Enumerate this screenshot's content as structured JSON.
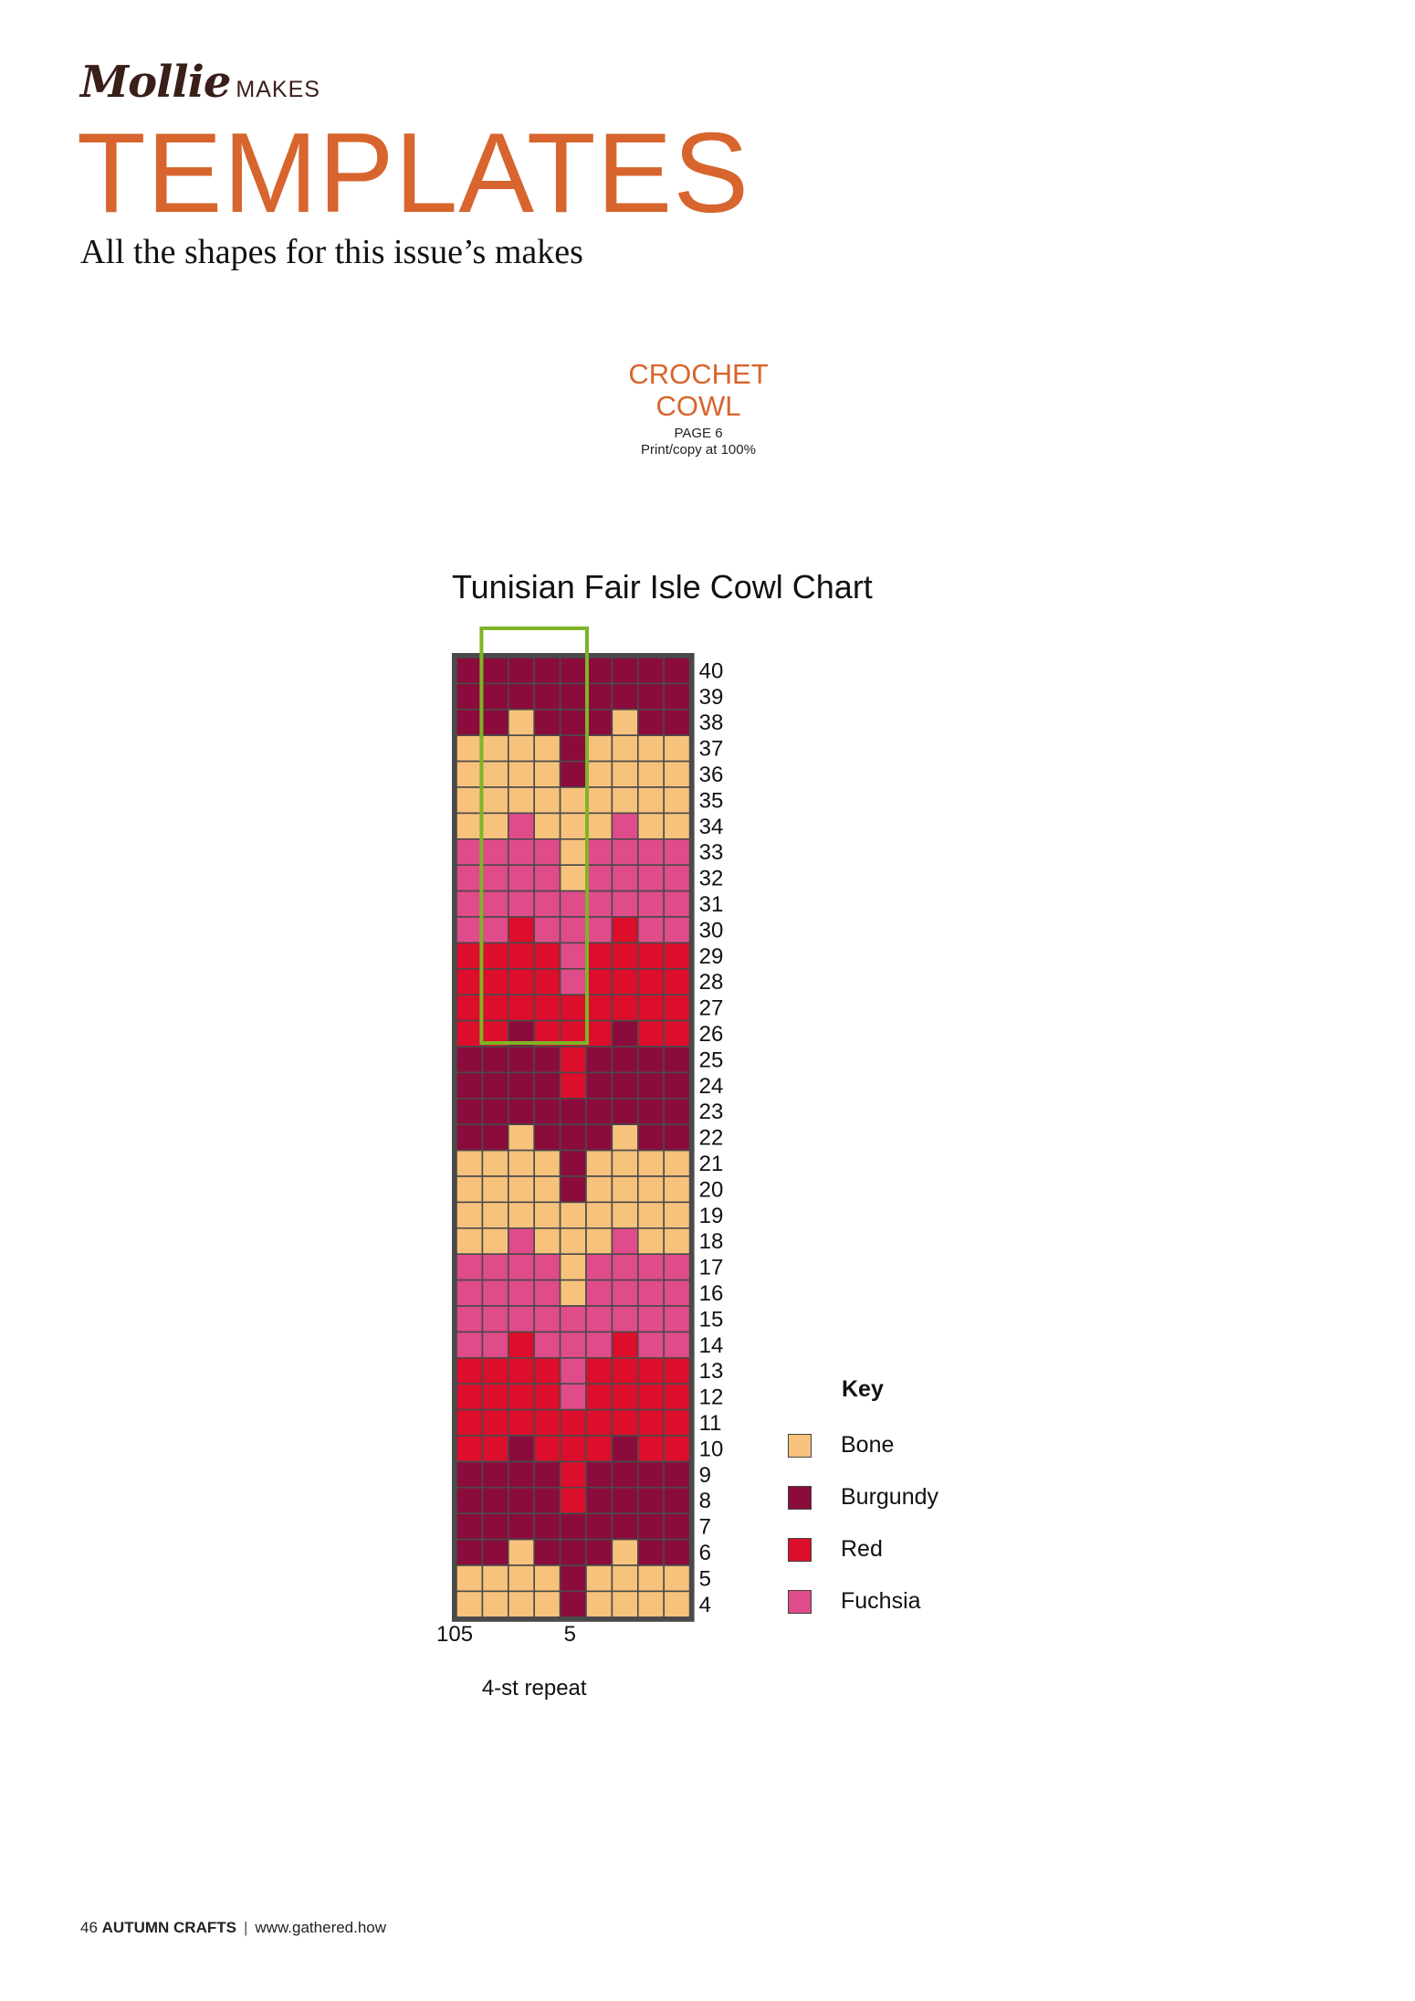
{
  "brand": {
    "script": "Mollie",
    "makes": "MAKES"
  },
  "header": {
    "title": "TEMPLATES",
    "subtitle": "All the shapes for this issue’s makes"
  },
  "section": {
    "title": "CROCHET COWL",
    "page": "PAGE 6",
    "print_note": "Print/copy at 100%"
  },
  "chart_title": "Tunisian Fair Isle Cowl Chart",
  "chart_data": {
    "type": "table",
    "title": "Tunisian Fair Isle Cowl Chart",
    "columns": 9,
    "row_labels": [
      "40",
      "39",
      "38",
      "37",
      "36",
      "35",
      "34",
      "33",
      "32",
      "31",
      "30",
      "29",
      "28",
      "27",
      "26",
      "25",
      "24",
      "23",
      "22",
      "21",
      "20",
      "19",
      "18",
      "17",
      "16",
      "15",
      "14",
      "13",
      "12",
      "11",
      "10",
      "9",
      "8",
      "7",
      "6",
      "5",
      "4"
    ],
    "stitch_labels": {
      "left": "105",
      "repeat_end": "5"
    },
    "repeat_label": "4-st repeat",
    "colors": {
      "B": "#f7c27c",
      "U": "#8b0c3c",
      "R": "#dc0e2b",
      "F": "#e04b8a"
    },
    "grid": [
      "UUUUUUUUU",
      "UUUUUUUUU",
      "UUBUUUBUU",
      "BBBBUBBBB",
      "BBBBUBBBB",
      "BBBBBBBBB",
      "BBFBBBFBB",
      "FFFFBFFFF",
      "FFFFBFFFF",
      "FFFFFFFFF",
      "FFRFFFRFF",
      "RRRRFRRRR",
      "RRRRFRRRR",
      "RRRRRRRRR",
      "RRURRRURR",
      "UUUURUUUU",
      "UUUURUUUU",
      "UUUUUUUUU",
      "UUBUUUBUU",
      "BBBBUBBBB",
      "BBBBUBBBB",
      "BBBBBBBBB",
      "BBFBBBFBB",
      "FFFFBFFFF",
      "FFFFBFFFF",
      "FFFFFFFFF",
      "FFRFFFRFF",
      "RRRRFRRRR",
      "RRRRFRRRR",
      "RRRRRRRRR",
      "RRURRRURR",
      "UUUURUUUU",
      "UUUURUUUU",
      "UUUUUUUUU",
      "UUBUUUBUU",
      "BBBBUBBBB",
      "BBBBUBBBB"
    ],
    "repeat_columns": [
      1,
      4
    ]
  },
  "key": {
    "title": "Key",
    "items": [
      {
        "label": "Bone",
        "color": "#f7c27c"
      },
      {
        "label": "Burgundy",
        "color": "#8b0c3c"
      },
      {
        "label": "Red",
        "color": "#dc0e2b"
      },
      {
        "label": "Fuchsia",
        "color": "#e04b8a"
      }
    ]
  },
  "footer": {
    "page_number": "46",
    "magazine": "AUTUMN CRAFTS",
    "separator": "|",
    "url": "www.gathered.how"
  }
}
